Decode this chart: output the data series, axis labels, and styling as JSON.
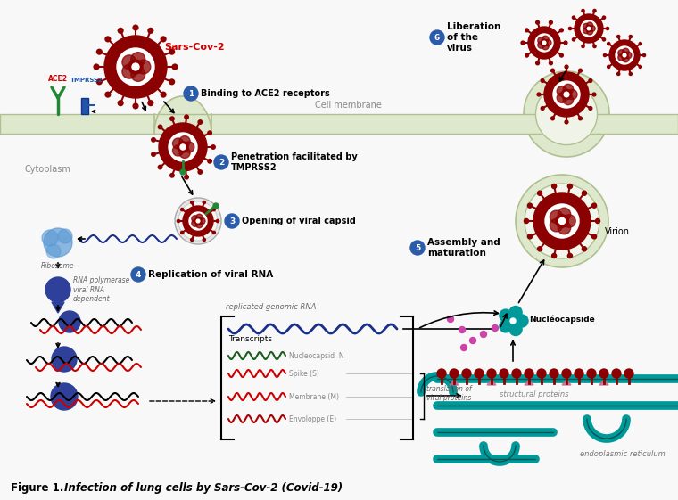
{
  "title": "Infection of lung cells by Sars-Cov-2 (Covid-19)",
  "figure_label": "Figure 1.",
  "bg_color": "#f8f8f8",
  "cell_membrane_color": "#dde8cc",
  "cell_membrane_edge": "#b0c090",
  "cytoplasm_label": "Cytoplasm",
  "cell_membrane_label": "Cell membrane",
  "step_labels": [
    "Binding to ACE2 receptors",
    "Penetration facilitated by\nTMPRSS2",
    "Opening of viral capsid",
    "Replication of viral RNA",
    "Assembly and\nmaturation",
    "Liberation\nof the\nvirus"
  ],
  "step_badge_color": "#2a5caa",
  "virus_outer_color": "#8b0000",
  "virus_inner_color": "#ffffff",
  "ribosome_color": "#5b9bd5",
  "rna_poly_color": "#2e4099",
  "transcript_colors": [
    "#1a5c1a",
    "#cc0000",
    "#cc0000",
    "#aa0000"
  ],
  "transcript_labels": [
    "Nucleocapsid  N",
    "Spike (S)",
    "Membrane (M)",
    "Envoloppe (E)"
  ],
  "nucleocapside_label": "Nucléocapside",
  "structural_proteins_label": "structural proteins",
  "endoplasmic_label": "endoplasmic reticulum",
  "virion_label": "Virion",
  "sars_label": "Sars-Cov-2",
  "ace2_label": "ACE2",
  "tmprss2_label": "TMPRSS2",
  "rna_poly_label": "RNA polymerase\nviral RNA\ndependent",
  "replicated_label": "replicated genomic RNA",
  "transcripts_label": "Transcripts",
  "translation_label": "translation of\nviral proteins",
  "teal_color": "#009999",
  "dark_red": "#8b0000",
  "navy": "#1a2f8a",
  "purple_dot": "#cc44aa"
}
